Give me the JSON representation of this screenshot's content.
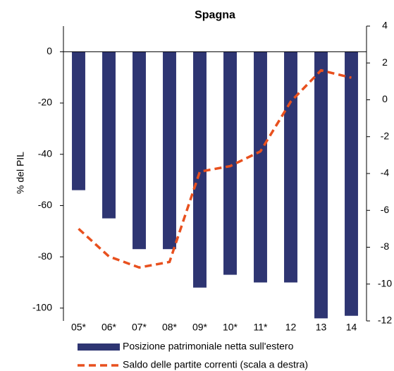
{
  "chart_data": {
    "type": "bar-line",
    "title": "Spagna",
    "y_label": "% del PIL",
    "categories": [
      "05*",
      "06*",
      "07*",
      "08*",
      "09*",
      "10*",
      "11*",
      "12",
      "13",
      "14"
    ],
    "series": [
      {
        "name": "Posizione patrimoniale netta sull'estero",
        "type": "bar",
        "color": "#2e3572",
        "values": [
          -54,
          -65,
          -77,
          -77,
          -92,
          -87,
          -90,
          -90,
          -104,
          -103
        ]
      },
      {
        "name": "Saldo delle partite correnti (scala a destra)",
        "type": "line",
        "axis": "y2",
        "color": "#e8501e",
        "dashed": true,
        "values": [
          -7.0,
          -8.5,
          -9.1,
          -8.8,
          -3.9,
          -3.6,
          -2.8,
          -0.1,
          1.6,
          1.2
        ]
      }
    ],
    "ylim": [
      -105,
      10
    ],
    "yticks": [
      0,
      -20,
      -40,
      -60,
      -80,
      -100
    ],
    "y2lim": [
      -12,
      4
    ],
    "y2ticks": [
      4,
      2,
      0,
      -2,
      -4,
      -6,
      -8,
      -10,
      -12
    ]
  }
}
